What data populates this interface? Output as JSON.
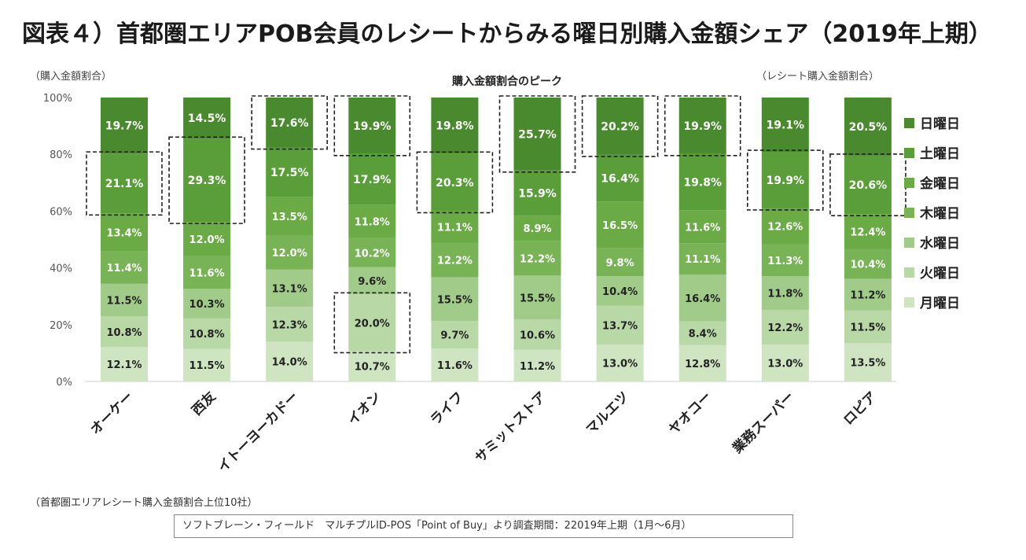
{
  "title": "図表４）首都圏エリアPOB会員のレシートからみる曜日別購入金額シェア（2019年上期）",
  "footnote": "（首都圏エリアレシート購入金額割合上位10社）",
  "source_box": "ソフトブレーン・フィールド　マルチプルID-POS「Point of Buy」より調査期間：22019年上期（1月～6月）",
  "chart_data": {
    "type": "bar",
    "stacked": true,
    "normalized": true,
    "title": "購入金額割合のピーク",
    "ylabel_left": "（購入金額割合）",
    "ylabel_right": "（レシート購入金額割合）",
    "ylim": [
      0,
      100
    ],
    "yticks": [
      "0%",
      "20%",
      "40%",
      "60%",
      "80%",
      "100%"
    ],
    "categories": [
      "オーケー",
      "西友",
      "イトーヨーカドー",
      "イオン",
      "ライフ",
      "サミットストア",
      "マルエツ",
      "ヤオコー",
      "業務スーパー",
      "ロピア"
    ],
    "series": [
      {
        "name": "月曜日",
        "color": "#cfe4c1",
        "values": [
          12.1,
          11.5,
          14.0,
          10.7,
          11.6,
          11.2,
          13.0,
          12.8,
          13.0,
          13.5
        ],
        "labels": [
          "12.1%",
          "11.5%",
          "14.0%",
          "10.7%",
          "11.6%",
          "11.2%",
          "13.0%",
          "12.8%",
          "13.0%",
          "13.5%"
        ]
      },
      {
        "name": "火曜日",
        "color": "#b8d8a6",
        "values": [
          10.8,
          10.8,
          12.3,
          20.0,
          9.7,
          10.6,
          13.7,
          8.4,
          12.2,
          11.5
        ],
        "labels": [
          "10.8%",
          "10.8%",
          "12.3%",
          "20.0%",
          "9.7%",
          "10.6%",
          "13.7%",
          "8.4%",
          "12.2%",
          "11.5%"
        ]
      },
      {
        "name": "水曜日",
        "color": "#a0cb88",
        "values": [
          11.5,
          10.3,
          13.1,
          9.6,
          15.5,
          15.5,
          10.4,
          16.4,
          11.8,
          11.2
        ],
        "labels": [
          "11.5%",
          "10.3%",
          "13.1%",
          "9.6%",
          "15.5%",
          "15.5%",
          "10.4%",
          "16.4%",
          "11.8%",
          "11.2%"
        ]
      },
      {
        "name": "木曜日",
        "color": "#78b456",
        "values": [
          11.4,
          11.6,
          12.0,
          10.2,
          12.2,
          12.2,
          9.8,
          11.1,
          11.3,
          10.4
        ],
        "labels": [
          "11.4%",
          "11.6%",
          "12.0%",
          "10.2%",
          "12.2%",
          "12.2%",
          "9.8%",
          "11.1%",
          "11.3%",
          "10.4%"
        ]
      },
      {
        "name": "金曜日",
        "color": "#6aab46",
        "values": [
          13.4,
          12.0,
          13.5,
          11.8,
          11.1,
          8.9,
          16.5,
          11.6,
          12.6,
          12.4
        ],
        "labels": [
          "13.4%",
          "12.0%",
          "13.5%",
          "11.8%",
          "11.1%",
          "8.9%",
          "16.5%",
          "11.6%",
          "12.6%",
          "12.4%"
        ]
      },
      {
        "name": "土曜日",
        "color": "#5a9e3a",
        "values": [
          21.1,
          29.3,
          17.5,
          17.9,
          20.3,
          15.9,
          16.4,
          19.8,
          19.9,
          20.6
        ],
        "labels": [
          "21.1%",
          "29.3%",
          "17.5%",
          "17.9%",
          "20.3%",
          "15.9%",
          "16.4%",
          "19.8%",
          "19.9%",
          "20.6%"
        ]
      },
      {
        "name": "日曜日",
        "color": "#4a8a2e",
        "values": [
          19.7,
          14.5,
          17.6,
          19.9,
          19.8,
          25.7,
          20.2,
          19.9,
          19.1,
          20.5
        ],
        "labels": [
          "19.7%",
          "14.5%",
          "17.6%",
          "19.9%",
          "19.8%",
          "25.7%",
          "20.2%",
          "19.9%",
          "19.1%",
          "20.5%"
        ]
      }
    ],
    "legend_order": [
      "日曜日",
      "土曜日",
      "金曜日",
      "木曜日",
      "水曜日",
      "火曜日",
      "月曜日"
    ],
    "peaks": [
      {
        "category": "オーケー",
        "series": "土曜日"
      },
      {
        "category": "西友",
        "series": "土曜日"
      },
      {
        "category": "イトーヨーカドー",
        "series": "日曜日"
      },
      {
        "category": "イオン",
        "series": "日曜日"
      },
      {
        "category": "イオン",
        "series": "火曜日"
      },
      {
        "category": "ライフ",
        "series": "土曜日"
      },
      {
        "category": "サミットストア",
        "series": "日曜日"
      },
      {
        "category": "マルエツ",
        "series": "日曜日"
      },
      {
        "category": "ヤオコー",
        "series": "日曜日"
      },
      {
        "category": "業務スーパー",
        "series": "土曜日"
      },
      {
        "category": "ロピア",
        "series": "土曜日"
      }
    ]
  }
}
